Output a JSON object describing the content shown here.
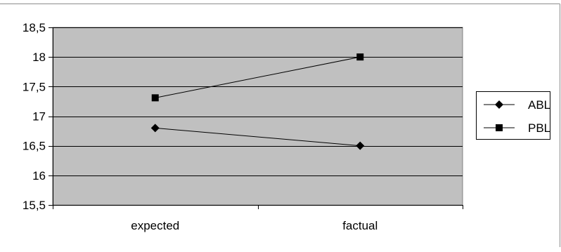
{
  "chart_data": {
    "type": "line",
    "title": "",
    "xlabel": "",
    "ylabel": "",
    "categories": [
      "expected",
      "factual"
    ],
    "ylim": [
      15.5,
      18.5
    ],
    "yticks": [
      "15,5",
      "16",
      "16,5",
      "17",
      "17,5",
      "18",
      "18,5"
    ],
    "ytick_values": [
      15.5,
      16,
      16.5,
      17,
      17.5,
      18,
      18.5
    ],
    "grid": true,
    "legend_position": "right",
    "plot_background": "#c0c0c0",
    "line_color": "#000000",
    "series": [
      {
        "name": "ABL",
        "marker": "diamond",
        "values": [
          16.8,
          16.5
        ]
      },
      {
        "name": "PBL",
        "marker": "square",
        "values": [
          17.31,
          18.0
        ]
      }
    ]
  }
}
